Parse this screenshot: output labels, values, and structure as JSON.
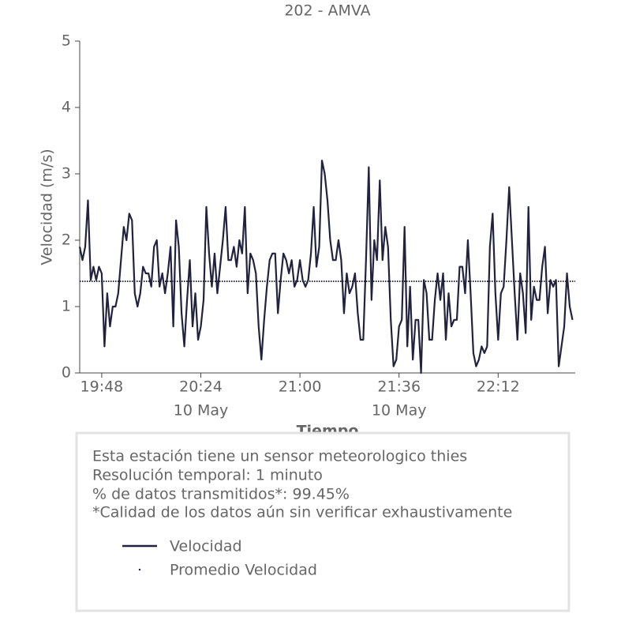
{
  "chart_data": {
    "type": "line",
    "title": "202 - AMVA",
    "xlabel": "Tiempo",
    "ylabel": "Velocidad (m/s)",
    "x": [
      "19:40",
      "19:41",
      "19:42",
      "19:43",
      "19:44",
      "19:45",
      "19:46",
      "19:47",
      "19:48",
      "19:49",
      "19:50",
      "19:51",
      "19:52",
      "19:53",
      "19:54",
      "19:55",
      "19:56",
      "19:57",
      "19:58",
      "19:59",
      "20:00",
      "20:01",
      "20:02",
      "20:03",
      "20:04",
      "20:05",
      "20:06",
      "20:07",
      "20:08",
      "20:09",
      "20:10",
      "20:11",
      "20:12",
      "20:13",
      "20:14",
      "20:15",
      "20:16",
      "20:17",
      "20:18",
      "20:19",
      "20:20",
      "20:21",
      "20:22",
      "20:23",
      "20:24",
      "20:25",
      "20:26",
      "20:27",
      "20:28",
      "20:29",
      "20:30",
      "20:31",
      "20:32",
      "20:33",
      "20:34",
      "20:35",
      "20:36",
      "20:37",
      "20:38",
      "20:39",
      "20:40",
      "20:41",
      "20:42",
      "20:43",
      "20:44",
      "20:45",
      "20:46",
      "20:47",
      "20:48",
      "20:49",
      "20:50",
      "20:51",
      "20:52",
      "20:53",
      "20:54",
      "20:55",
      "20:56",
      "20:57",
      "20:58",
      "20:59",
      "21:00",
      "21:01",
      "21:02",
      "21:03",
      "21:04",
      "21:05",
      "21:06",
      "21:07",
      "21:08",
      "21:09",
      "21:10",
      "21:11",
      "21:12",
      "21:13",
      "21:14",
      "21:15",
      "21:16",
      "21:17",
      "21:18",
      "21:19",
      "21:20",
      "21:21",
      "21:22",
      "21:23",
      "21:24",
      "21:25",
      "21:26",
      "21:27",
      "21:28",
      "21:29",
      "21:30",
      "21:31",
      "21:32",
      "21:33",
      "21:34",
      "21:35",
      "21:36",
      "21:37",
      "21:38",
      "21:39",
      "21:40",
      "21:41",
      "21:42",
      "21:43",
      "21:44",
      "21:45",
      "21:46",
      "21:47",
      "21:48",
      "21:49",
      "21:50",
      "21:51",
      "21:52",
      "21:53",
      "21:54",
      "21:55",
      "21:56",
      "21:57",
      "21:58",
      "21:59",
      "22:00",
      "22:01",
      "22:02",
      "22:03",
      "22:04",
      "22:05",
      "22:06",
      "22:07",
      "22:08",
      "22:09",
      "22:10",
      "22:11",
      "22:12",
      "22:13",
      "22:14",
      "22:15",
      "22:16",
      "22:17",
      "22:18",
      "22:19",
      "22:20",
      "22:21",
      "22:22",
      "22:23",
      "22:24",
      "22:25",
      "22:26",
      "22:27",
      "22:28",
      "22:29",
      "22:30",
      "22:31",
      "22:32",
      "22:33",
      "22:34",
      "22:35",
      "22:36",
      "22:37",
      "22:38",
      "22:39"
    ],
    "series": [
      {
        "name": "Velocidad",
        "color": "#22223f",
        "values": [
          1.9,
          1.7,
          1.9,
          2.6,
          1.4,
          1.6,
          1.4,
          1.6,
          1.5,
          0.4,
          1.2,
          0.7,
          1.0,
          1.0,
          1.2,
          1.7,
          2.2,
          2.0,
          2.4,
          2.3,
          1.2,
          1.0,
          1.2,
          1.6,
          1.5,
          1.5,
          1.3,
          1.9,
          2.0,
          1.3,
          1.5,
          1.2,
          1.5,
          1.9,
          0.7,
          2.3,
          1.9,
          0.9,
          0.4,
          1.1,
          1.7,
          0.7,
          1.2,
          0.5,
          0.7,
          1.1,
          2.5,
          1.8,
          1.3,
          1.8,
          1.2,
          1.6,
          2.0,
          2.5,
          1.7,
          1.7,
          1.9,
          1.6,
          2.0,
          1.8,
          2.5,
          1.2,
          1.8,
          1.7,
          1.5,
          0.7,
          0.2,
          0.8,
          1.3,
          1.7,
          1.8,
          1.8,
          0.9,
          1.4,
          1.8,
          1.7,
          1.5,
          1.7,
          1.3,
          1.4,
          1.7,
          1.4,
          1.3,
          1.4,
          1.8,
          2.5,
          1.6,
          1.9,
          3.2,
          3.0,
          2.6,
          2.0,
          1.7,
          1.7,
          2.0,
          1.7,
          0.9,
          1.5,
          1.2,
          1.3,
          1.5,
          0.9,
          0.5,
          0.5,
          1.7,
          3.1,
          1.1,
          2.0,
          1.7,
          2.9,
          1.7,
          2.2,
          1.9,
          0.8,
          0.1,
          0.2,
          0.7,
          0.8,
          2.2,
          0.4,
          1.3,
          0.2,
          0.8,
          0.8,
          0.0,
          1.4,
          1.2,
          0.5,
          0.5,
          1.1,
          1.5,
          1.1,
          1.5,
          0.5,
          1.2,
          0.7,
          0.8,
          0.8,
          1.6,
          1.6,
          1.2,
          2.0,
          1.2,
          0.3,
          0.1,
          0.2,
          0.4,
          0.3,
          0.4,
          1.9,
          2.4,
          1.2,
          0.5,
          1.2,
          1.3,
          2.0,
          2.8,
          2.0,
          1.2,
          0.5,
          1.5,
          1.2,
          0.6,
          2.5,
          0.8,
          1.3,
          1.1,
          1.1,
          1.6,
          1.9,
          0.9,
          1.4,
          1.3,
          1.4,
          0.1,
          0.4,
          0.7,
          1.5,
          1.0,
          0.8
        ]
      }
    ],
    "mean": {
      "name": "Promedio Velocidad",
      "color": "#22223f",
      "value": 1.38
    },
    "xlim": [
      "19:40",
      "22:40"
    ],
    "xticks": [
      "19:48",
      {
        "value": "20:24",
        "label": "20:24",
        "date": "10 May"
      },
      "21:00",
      {
        "value": "21:36",
        "label": "21:36",
        "date": "10 May"
      },
      "22:12"
    ],
    "ylim": [
      0,
      5
    ],
    "yticks": [
      0,
      1,
      2,
      3,
      4,
      5
    ],
    "info": [
      "Esta estación tiene un sensor meteorologico thies",
      "Resolución temporal: 1 minuto",
      "% de datos transmitidos*: 99.45%",
      "*Calidad de los datos aún sin verificar exhaustivamente"
    ]
  }
}
